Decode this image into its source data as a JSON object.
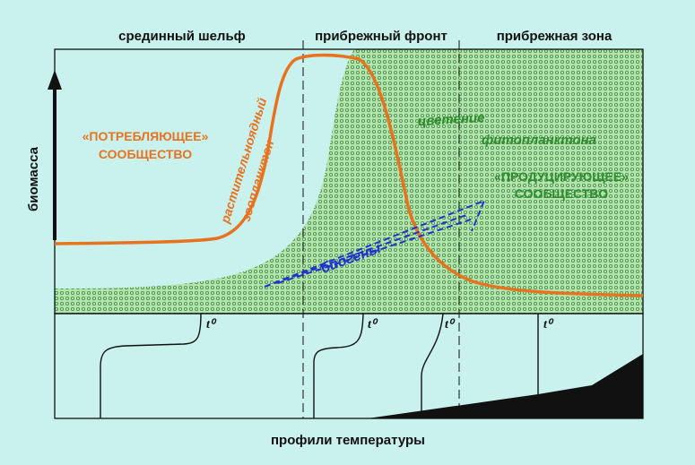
{
  "header": {
    "zones": [
      "срединный шельф",
      "прибрежный фронт",
      "прибрежная зона"
    ]
  },
  "axis": {
    "y_label": "биомасса",
    "x_label": "профили температуры"
  },
  "labels": {
    "consuming": [
      "«ПОТРЕБЛЯЮЩЕЕ»",
      "СООБЩЕСТВО"
    ],
    "zooplankton": [
      "растительноядный",
      "зоопланктон"
    ],
    "bloom": [
      "цветение",
      "фитопланктона"
    ],
    "producing": [
      "«ПРОДУЦИРУЮЩЕЕ»",
      "СООБЩЕСТВО"
    ],
    "nutrients": "биогены"
  },
  "profiles": {
    "t_labels": [
      "t⁰",
      "t⁰",
      "t⁰",
      "t⁰"
    ]
  }
}
